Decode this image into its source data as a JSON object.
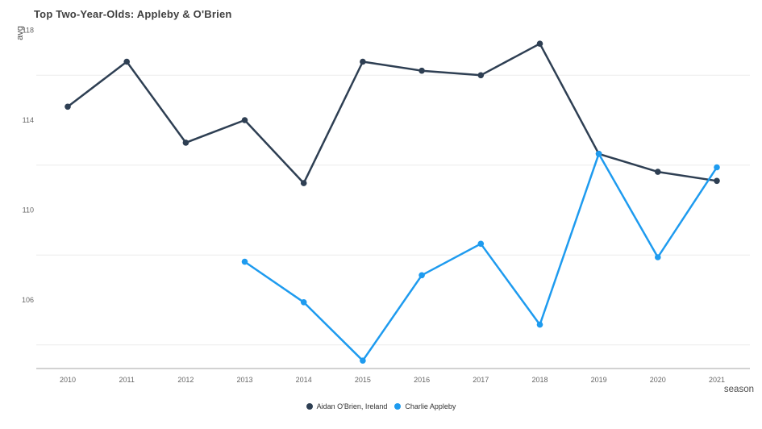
{
  "title": "Top Two-Year-Olds: Appleby & O'Brien",
  "chart_data": {
    "type": "line",
    "x": [
      2010,
      2011,
      2012,
      2013,
      2014,
      2015,
      2016,
      2017,
      2018,
      2019,
      2020,
      2021
    ],
    "xlabel": "season",
    "ylabel": "avg",
    "ylim": [
      102.95,
      118.27
    ],
    "y_tick_labels": [
      118,
      114,
      110,
      106
    ],
    "gridline_values": [
      116,
      112,
      108,
      104
    ],
    "grid": true,
    "legend_position": "bottom-center",
    "series": [
      {
        "name": "Aidan O'Brien, Ireland",
        "color": "#2e3f53",
        "values": [
          114.6,
          116.6,
          113.0,
          114.0,
          111.2,
          116.6,
          116.2,
          116.0,
          117.4,
          112.5,
          111.7,
          111.3
        ]
      },
      {
        "name": "Charlie Appleby",
        "color": "#1e9bef",
        "values": [
          null,
          null,
          null,
          107.7,
          105.9,
          103.3,
          107.1,
          108.5,
          104.9,
          112.5,
          107.9,
          111.9
        ]
      }
    ]
  },
  "colors": {
    "background": "#ffffff",
    "gridline": "#ebebeb",
    "axis_line": "#a6a6a6",
    "tick_text": "#666666",
    "axis_title_text": "#4d4d4d",
    "title_text": "#404040",
    "legend_text": "#333333"
  }
}
